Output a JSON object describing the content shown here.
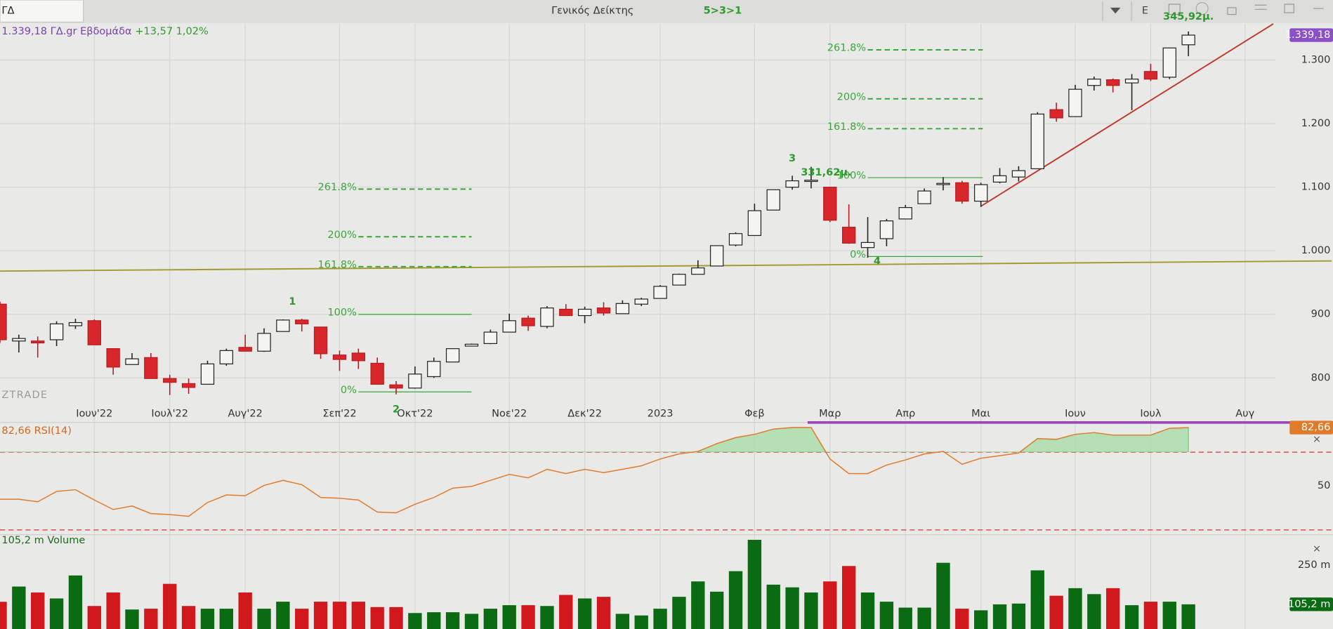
{
  "toolbar": {
    "symbol": "ΓΔ",
    "title": "Γενικός Δείκτης",
    "strategy": "5>3>1",
    "button": "E"
  },
  "chart_data": [
    {
      "type": "candlestick",
      "title": "1.339,18 ΓΔ.gr Εβδομάδα",
      "subtitle": "+13,57 1,02%",
      "watermark": "ZTRADE",
      "open": [
        916,
        858,
        858,
        860,
        882,
        890,
        846,
        821,
        832,
        799,
        791,
        790,
        822,
        848,
        842,
        873,
        891,
        880,
        836,
        839,
        823,
        789,
        784,
        802,
        825,
        850,
        854,
        872,
        894,
        881,
        908,
        898,
        910,
        901,
        916,
        925,
        946,
        963,
        976,
        1009,
        1024,
        1064,
        1100,
        1110,
        1100,
        1037,
        1005,
        1019,
        1050,
        1074,
        1105,
        1107,
        1078,
        1108,
        1116,
        1129,
        1222,
        1211,
        1260,
        1269,
        1264,
        1282,
        1273,
        1324
      ],
      "high": [
        920,
        868,
        865,
        889,
        893,
        892,
        846,
        839,
        839,
        805,
        799,
        827,
        846,
        868,
        878,
        892,
        893,
        880,
        843,
        846,
        832,
        795,
        818,
        832,
        846,
        854,
        876,
        901,
        898,
        913,
        916,
        912,
        919,
        922,
        926,
        946,
        964,
        985,
        1008,
        1029,
        1074,
        1096,
        1118,
        1132,
        1100,
        1073,
        1053,
        1050,
        1072,
        1098,
        1116,
        1110,
        1107,
        1130,
        1133,
        1218,
        1233,
        1261,
        1274,
        1271,
        1278,
        1294,
        1319,
        1345
      ],
      "low": [
        855,
        840,
        832,
        850,
        877,
        852,
        805,
        821,
        799,
        773,
        775,
        790,
        819,
        842,
        841,
        873,
        873,
        830,
        811,
        814,
        790,
        774,
        783,
        800,
        825,
        850,
        853,
        872,
        874,
        878,
        898,
        886,
        898,
        901,
        913,
        925,
        946,
        963,
        976,
        1007,
        1024,
        1064,
        1096,
        1098,
        1045,
        1011,
        989,
        1007,
        1050,
        1074,
        1095,
        1074,
        1069,
        1106,
        1109,
        1129,
        1203,
        1211,
        1252,
        1249,
        1221,
        1267,
        1270,
        1306
      ],
      "close": [
        860,
        862,
        855,
        885,
        887,
        852,
        817,
        830,
        799,
        793,
        785,
        822,
        843,
        842,
        870,
        891,
        885,
        838,
        829,
        827,
        790,
        784,
        806,
        826,
        846,
        853,
        872,
        890,
        882,
        910,
        898,
        908,
        902,
        917,
        924,
        944,
        963,
        973,
        1008,
        1027,
        1063,
        1096,
        1110,
        1111,
        1048,
        1012,
        1013,
        1047,
        1068,
        1094,
        1106,
        1078,
        1104,
        1118,
        1126,
        1215,
        1209,
        1254,
        1270,
        1260,
        1270,
        1270,
        1319,
        1339.18
      ],
      "up_color": "#f4f4f2",
      "down_color": "#d9262b",
      "last_label": "1.339,18",
      "last_color": "#8a4fc9",
      "xlim": [
        0,
        67.6
      ],
      "xticks": [
        {
          "value": 5,
          "label": "Ιουν'22"
        },
        {
          "value": 9,
          "label": "Ιουλ'22"
        },
        {
          "value": 13,
          "label": "Αυγ'22"
        },
        {
          "value": 18,
          "label": "Σεπ'22"
        },
        {
          "value": 22,
          "label": "Οκτ'22"
        },
        {
          "value": 27,
          "label": "Νοε'22"
        },
        {
          "value": 31,
          "label": "Δεκ'22"
        },
        {
          "value": 35,
          "label": "2023"
        },
        {
          "value": 40,
          "label": "Φεβ"
        },
        {
          "value": 44,
          "label": "Μαρ"
        },
        {
          "value": 48,
          "label": "Απρ"
        },
        {
          "value": 52,
          "label": "Μαι"
        },
        {
          "value": 57,
          "label": "Ιουν"
        },
        {
          "value": 61,
          "label": "Ιουλ"
        },
        {
          "value": 66,
          "label": "Αυγ"
        }
      ],
      "ylim": [
        766,
        1357
      ],
      "yticks": [
        800,
        900,
        {
          "value": 1000,
          "label": "1.000"
        },
        {
          "value": 1100,
          "label": "1.100"
        },
        {
          "value": 1200,
          "label": "1.200"
        },
        {
          "value": 1300,
          "label": "1.300"
        }
      ],
      "grid": true,
      "fibonacci": [
        {
          "x_range": [
            19,
            25
          ],
          "color": "#3aa63a",
          "levels": [
            {
              "label": "0%",
              "value": 778,
              "style": "solid"
            },
            {
              "label": "100%",
              "value": 900,
              "style": "solid"
            },
            {
              "label": "161.8%",
              "value": 975,
              "style": "dashed"
            },
            {
              "label": "200%",
              "value": 1022,
              "style": "dashed"
            },
            {
              "label": "261.8%",
              "value": 1097,
              "style": "dashed"
            }
          ]
        },
        {
          "x_range": [
            46,
            52.1
          ],
          "color": "#3aa63a",
          "levels": [
            {
              "label": "0%",
              "value": 991,
              "style": "solid"
            },
            {
              "label": "100%",
              "value": 1115,
              "style": "solid"
            },
            {
              "label": "161.8%",
              "value": 1192,
              "style": "dashed"
            },
            {
              "label": "200%",
              "value": 1239,
              "style": "dashed"
            },
            {
              "label": "261.8%",
              "value": 1316,
              "style": "dashed"
            }
          ]
        }
      ],
      "waves": [
        {
          "label": "1",
          "x": 15.5,
          "position": "above"
        },
        {
          "label": "2",
          "x": 21,
          "position": "below"
        },
        {
          "label": "3",
          "x": 42,
          "position": "above"
        },
        {
          "label": "4",
          "x": 46.5,
          "position": "below"
        }
      ],
      "annotations": [
        {
          "label": "331,62μ.",
          "x": 43.8
        },
        {
          "label": "345,92μ.",
          "x": 63
        }
      ],
      "lines": [
        {
          "x": [
            0,
            70.6
          ],
          "y": [
            968,
            984
          ],
          "color": "#a39a2e"
        },
        {
          "x": [
            52,
            67.5
          ],
          "y": [
            1070,
            1357
          ],
          "color": "#c0392b"
        }
      ]
    },
    {
      "type": "line",
      "title": "82,66 RSI(14)",
      "color": "#e07b2a",
      "fill_color": "#a8dca8",
      "overbought_fill": true,
      "values": [
        45.8,
        45.8,
        44.5,
        49.8,
        50.7,
        45.4,
        40.5,
        42.3,
        38.4,
        37.9,
        37.0,
        44.1,
        48.0,
        47.6,
        52.9,
        55.5,
        53.3,
        46.7,
        46.3,
        45.4,
        39.2,
        38.8,
        43.2,
        46.7,
        51.5,
        52.4,
        55.5,
        58.6,
        56.8,
        61.2,
        59.0,
        61.2,
        59.5,
        61.2,
        63.0,
        66.5,
        69.1,
        70.4,
        74.4,
        77.5,
        79.2,
        81.9,
        82.7,
        82.7,
        66.5,
        59.0,
        59.0,
        63.4,
        66.0,
        69.1,
        70.4,
        63.8,
        66.9,
        68.2,
        69.6,
        77.0,
        76.6,
        79.2,
        80.1,
        78.8,
        78.8,
        78.8,
        82.3,
        82.66
      ],
      "last_label": "82,66",
      "ylim": [
        28,
        84
      ],
      "yticks": [
        50
      ],
      "levels": [
        30,
        70
      ]
    },
    {
      "type": "bar",
      "title": "105,2 m Volume",
      "up_color": "#0b6b12",
      "down_color": "#d0181d",
      "values": [
        114.6,
        171,
        149,
        127,
        212,
        99,
        149,
        86,
        89,
        181,
        99,
        89,
        89,
        149,
        89,
        115,
        89,
        115,
        115,
        115,
        95,
        95,
        73,
        76,
        76,
        70,
        89,
        102,
        102,
        99,
        140,
        127,
        133,
        70,
        64,
        89,
        133,
        190,
        152,
        228,
        344,
        178,
        168,
        149,
        190,
        247,
        149,
        115,
        93,
        93,
        259,
        89,
        83,
        105,
        108,
        231,
        137,
        165,
        143,
        165,
        102,
        115,
        115,
        105.2
      ],
      "last_label": "105,2 m",
      "ylim": [
        0,
        360
      ],
      "yticks": [
        {
          "value": 250,
          "label": "250 m"
        }
      ]
    }
  ]
}
